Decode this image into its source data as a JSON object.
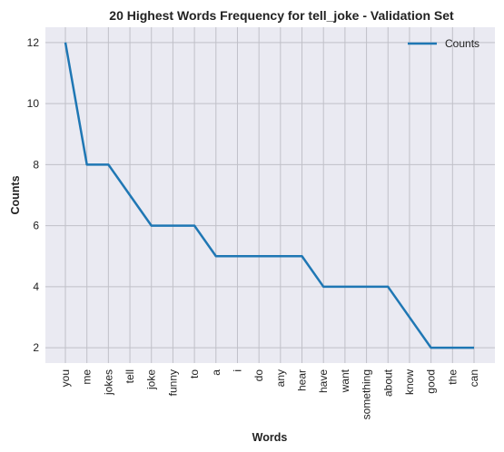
{
  "chart_data": {
    "type": "line",
    "title": "20 Highest Words Frequency for tell_joke - Validation Set",
    "xlabel": "Words",
    "ylabel": "Counts",
    "categories": [
      "you",
      "me",
      "jokes",
      "tell",
      "joke",
      "funny",
      "to",
      "a",
      "i",
      "do",
      "any",
      "hear",
      "have",
      "want",
      "something",
      "about",
      "know",
      "good",
      "the",
      "can"
    ],
    "series": [
      {
        "name": "Counts",
        "values": [
          12,
          8,
          8,
          7,
          6,
          6,
          6,
          5,
          5,
          5,
          5,
          5,
          4,
          4,
          4,
          4,
          3,
          2,
          2,
          2
        ]
      }
    ],
    "ylim": [
      1.5,
      12.5
    ],
    "yticks": [
      2,
      4,
      6,
      8,
      10,
      12
    ],
    "grid": true,
    "legend_position": "top-right",
    "colors": {
      "line": "#1f77b4",
      "plot_bg": "#eaeaf2",
      "grid": "#c0c0c8"
    }
  }
}
